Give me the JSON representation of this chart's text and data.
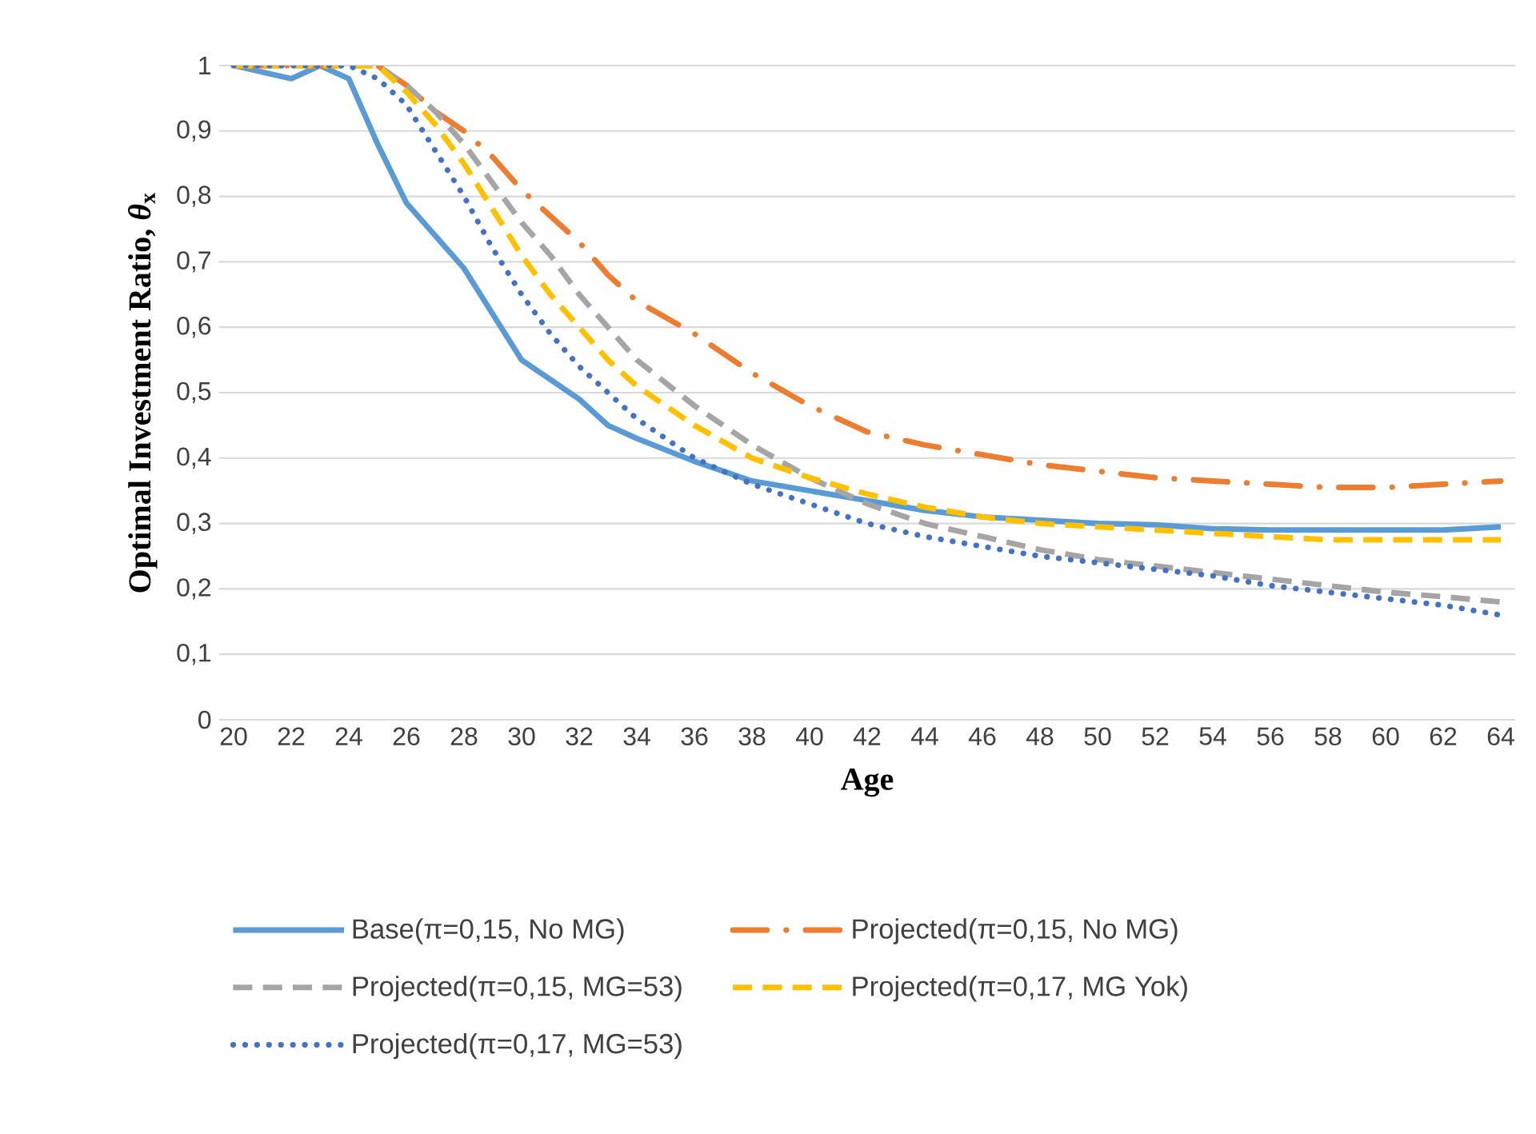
{
  "chart_data": {
    "type": "line",
    "xlabel": "Age",
    "ylabel": "Optimal Investment Ratio, *θ*$_{x}$",
    "x": [
      20,
      21,
      22,
      23,
      24,
      25,
      26,
      27,
      28,
      29,
      30,
      31,
      32,
      33,
      34,
      36,
      38,
      40,
      42,
      44,
      46,
      48,
      50,
      52,
      54,
      56,
      58,
      60,
      62,
      64
    ],
    "xlim": [
      19.5,
      64.5
    ],
    "xticks": [
      20,
      22,
      24,
      26,
      28,
      30,
      32,
      34,
      36,
      38,
      40,
      42,
      44,
      46,
      48,
      50,
      52,
      54,
      56,
      58,
      60,
      62,
      64
    ],
    "ylim": [
      0,
      1
    ],
    "yticks": [
      0,
      {
        "value": 0.1,
        "label": "0,1"
      },
      {
        "value": 0.2,
        "label": "0,2"
      },
      {
        "value": 0.3,
        "label": "0,3"
      },
      {
        "value": 0.4,
        "label": "0,4"
      },
      {
        "value": 0.5,
        "label": "0,5"
      },
      {
        "value": 0.6,
        "label": "0,6"
      },
      {
        "value": 0.7,
        "label": "0,7"
      },
      {
        "value": 0.8,
        "label": "0,8"
      },
      {
        "value": 0.9,
        "label": "0,9"
      },
      1
    ],
    "grid": "y",
    "legend": "bottom",
    "marker": "none",
    "series": [
      {
        "name": "Base(π=0,15, No MG)",
        "color": "#5b9bd5",
        "line_style": "solid",
        "values": [
          1,
          0.99,
          0.98,
          1,
          0.98,
          0.88,
          0.79,
          0.74,
          0.69,
          0.62,
          0.55,
          0.52,
          0.49,
          0.45,
          0.43,
          0.395,
          0.365,
          0.35,
          0.335,
          0.32,
          0.31,
          0.305,
          0.3,
          0.298,
          0.292,
          0.29,
          0.29,
          0.29,
          0.29,
          0.295
        ]
      },
      {
        "name": "Projected(π=0,15, No MG)",
        "color": "#ed7d31",
        "line_style": "dashdot",
        "values": [
          1,
          1,
          1,
          1,
          1,
          1,
          0.97,
          0.93,
          0.9,
          0.86,
          0.81,
          0.77,
          0.73,
          0.68,
          0.64,
          0.59,
          0.53,
          0.48,
          0.44,
          0.42,
          0.405,
          0.39,
          0.38,
          0.37,
          0.365,
          0.36,
          0.355,
          0.355,
          0.36,
          0.365
        ]
      },
      {
        "name": "Projected(π=0,15, MG=53)",
        "color": "#a5a5a5",
        "line_style": "dashed",
        "values": [
          1,
          1,
          1,
          1,
          1,
          1,
          0.97,
          0.93,
          0.88,
          0.82,
          0.76,
          0.71,
          0.65,
          0.6,
          0.55,
          0.48,
          0.42,
          0.37,
          0.33,
          0.3,
          0.28,
          0.26,
          0.245,
          0.235,
          0.225,
          0.215,
          0.205,
          0.195,
          0.188,
          0.18
        ]
      },
      {
        "name": "Projected(π=0,17, MG Yok)",
        "color": "#ffc000",
        "line_style": "dashed",
        "values": [
          1,
          1,
          1,
          1,
          1,
          1,
          0.96,
          0.91,
          0.85,
          0.78,
          0.71,
          0.65,
          0.6,
          0.55,
          0.51,
          0.45,
          0.4,
          0.37,
          0.345,
          0.325,
          0.31,
          0.3,
          0.295,
          0.29,
          0.285,
          0.28,
          0.275,
          0.275,
          0.275,
          0.275
        ]
      },
      {
        "name": "Projected(π=0,17, MG=53)",
        "color": "#4472c4",
        "line_style": "dotted",
        "values": [
          1,
          1,
          1,
          1,
          1,
          0.98,
          0.94,
          0.87,
          0.8,
          0.72,
          0.65,
          0.59,
          0.54,
          0.5,
          0.46,
          0.4,
          0.36,
          0.33,
          0.3,
          0.28,
          0.265,
          0.25,
          0.24,
          0.23,
          0.22,
          0.205,
          0.195,
          0.185,
          0.175,
          0.16
        ]
      }
    ]
  }
}
